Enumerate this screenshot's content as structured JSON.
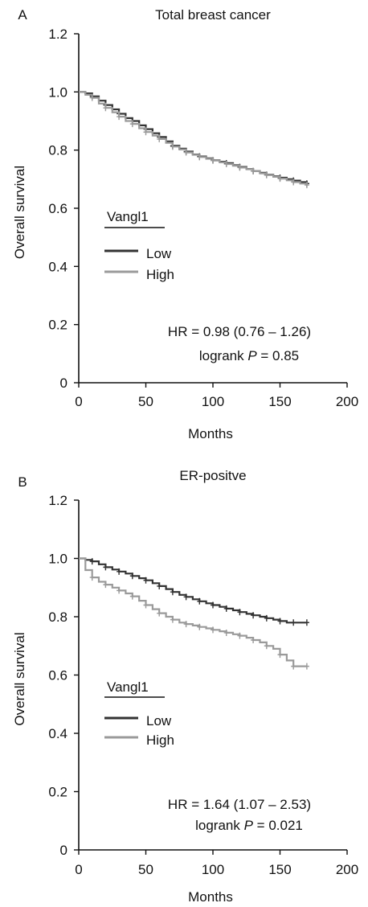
{
  "panels": [
    {
      "letter": "A",
      "title": "Total breast cancer",
      "legend_title": "Vangl1",
      "hr_line": "HR = 0.98 (0.76 – 1.26)",
      "logrank_prefix": "logrank ",
      "logrank_p": "P",
      "logrank_value": " = 0.85",
      "chart_data": {
        "type": "line",
        "title": "Total breast cancer",
        "xlabel": "Months",
        "ylabel": "Overall survival",
        "xlim": [
          0,
          200
        ],
        "ylim": [
          0,
          1.2
        ],
        "xticks": [
          "0",
          "50",
          "100",
          "150",
          "200"
        ],
        "yticks": [
          "0",
          "0.2",
          "0.4",
          "0.6",
          "0.8",
          "1.0",
          "1.2"
        ],
        "grid": false,
        "legend_placement": "center-left",
        "series": [
          {
            "name": "Low",
            "color": "#333333",
            "x": [
              0,
              5,
              10,
              15,
              20,
              25,
              30,
              35,
              40,
              45,
              50,
              55,
              60,
              65,
              70,
              75,
              80,
              85,
              90,
              95,
              100,
              105,
              110,
              115,
              120,
              125,
              130,
              135,
              140,
              145,
              150,
              155,
              160,
              165,
              170
            ],
            "y": [
              1.0,
              0.995,
              0.985,
              0.97,
              0.955,
              0.94,
              0.925,
              0.91,
              0.9,
              0.885,
              0.872,
              0.858,
              0.845,
              0.83,
              0.815,
              0.805,
              0.795,
              0.785,
              0.778,
              0.772,
              0.765,
              0.76,
              0.755,
              0.748,
              0.742,
              0.735,
              0.728,
              0.722,
              0.715,
              0.71,
              0.705,
              0.7,
              0.695,
              0.69,
              0.685
            ]
          },
          {
            "name": "High",
            "color": "#9a9a9a",
            "x": [
              0,
              5,
              10,
              15,
              20,
              25,
              30,
              35,
              40,
              45,
              50,
              55,
              60,
              65,
              70,
              75,
              80,
              85,
              90,
              95,
              100,
              105,
              110,
              115,
              120,
              125,
              130,
              135,
              140,
              145,
              150,
              155,
              160,
              165,
              170
            ],
            "y": [
              1.0,
              0.99,
              0.98,
              0.96,
              0.945,
              0.93,
              0.915,
              0.9,
              0.89,
              0.875,
              0.862,
              0.85,
              0.838,
              0.825,
              0.812,
              0.802,
              0.792,
              0.784,
              0.776,
              0.77,
              0.764,
              0.758,
              0.752,
              0.746,
              0.74,
              0.734,
              0.728,
              0.72,
              0.714,
              0.708,
              0.702,
              0.696,
              0.69,
              0.685,
              0.68
            ]
          }
        ]
      }
    },
    {
      "letter": "B",
      "title": "ER-positve",
      "legend_title": "Vangl1",
      "hr_line": "HR = 1.64 (1.07 – 2.53)",
      "logrank_prefix": "logrank ",
      "logrank_p": "P",
      "logrank_value": " = 0.021",
      "chart_data": {
        "type": "line",
        "title": "ER-positve",
        "xlabel": "Months",
        "ylabel": "Overall survival",
        "xlim": [
          0,
          200
        ],
        "ylim": [
          0,
          1.2
        ],
        "xticks": [
          "0",
          "50",
          "100",
          "150",
          "200"
        ],
        "yticks": [
          "0",
          "0.2",
          "0.4",
          "0.6",
          "0.8",
          "1.0",
          "1.2"
        ],
        "grid": false,
        "legend_placement": "center-left",
        "series": [
          {
            "name": "Low",
            "color": "#333333",
            "x": [
              0,
              5,
              10,
              15,
              20,
              25,
              30,
              35,
              40,
              45,
              50,
              55,
              60,
              65,
              70,
              75,
              80,
              85,
              90,
              95,
              100,
              105,
              110,
              115,
              120,
              125,
              130,
              135,
              140,
              145,
              150,
              155,
              160,
              165,
              170
            ],
            "y": [
              1.0,
              0.995,
              0.99,
              0.98,
              0.97,
              0.962,
              0.955,
              0.948,
              0.94,
              0.932,
              0.925,
              0.915,
              0.905,
              0.895,
              0.885,
              0.875,
              0.868,
              0.86,
              0.853,
              0.846,
              0.84,
              0.834,
              0.828,
              0.822,
              0.816,
              0.81,
              0.805,
              0.8,
              0.795,
              0.79,
              0.785,
              0.78,
              0.78,
              0.78,
              0.78
            ]
          },
          {
            "name": "High",
            "color": "#9a9a9a",
            "x": [
              0,
              5,
              10,
              15,
              20,
              25,
              30,
              35,
              40,
              45,
              50,
              55,
              60,
              65,
              70,
              75,
              80,
              85,
              90,
              95,
              100,
              105,
              110,
              115,
              120,
              125,
              130,
              135,
              140,
              145,
              150,
              155,
              160,
              165,
              170
            ],
            "y": [
              1.0,
              0.96,
              0.935,
              0.92,
              0.91,
              0.9,
              0.89,
              0.88,
              0.87,
              0.855,
              0.84,
              0.826,
              0.812,
              0.8,
              0.79,
              0.78,
              0.775,
              0.77,
              0.765,
              0.76,
              0.755,
              0.75,
              0.745,
              0.74,
              0.735,
              0.728,
              0.72,
              0.712,
              0.7,
              0.69,
              0.67,
              0.65,
              0.63,
              0.63,
              0.63
            ]
          }
        ]
      }
    }
  ]
}
